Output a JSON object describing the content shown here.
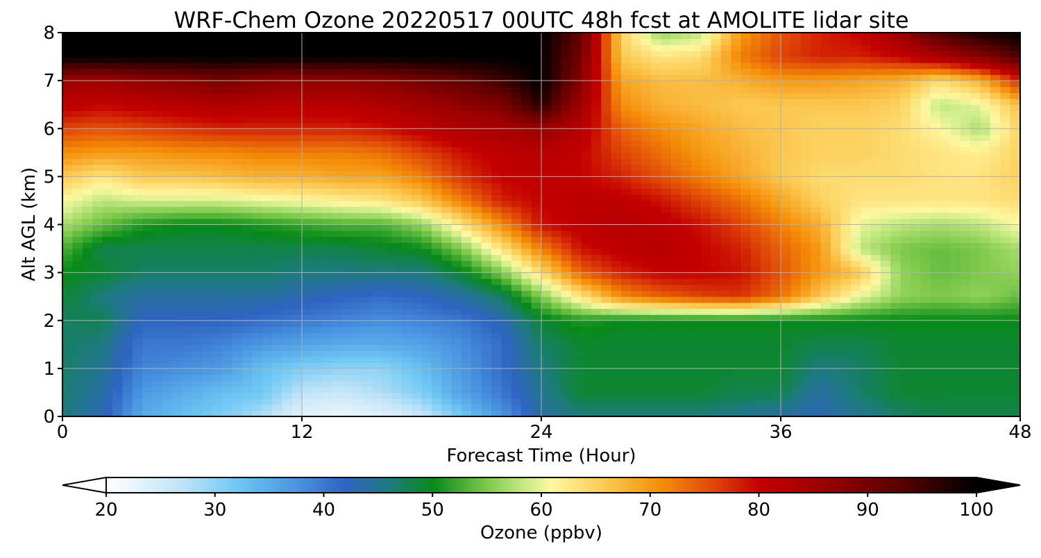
{
  "chart_data": {
    "type": "heatmap",
    "title": "WRF-Chem Ozone  20220517 00UTC 48h fcst at AMOLITE lidar site",
    "xlabel": "Forecast Time (Hour)",
    "ylabel": "Alt AGL (km)",
    "x_ticks": [
      0,
      12,
      24,
      36,
      48
    ],
    "y_ticks": [
      0,
      1,
      2,
      3,
      4,
      5,
      6,
      7,
      8
    ],
    "xlim": [
      0,
      48
    ],
    "ylim": [
      0,
      8
    ],
    "grid": true,
    "x": [
      0,
      2,
      4,
      6,
      8,
      10,
      12,
      14,
      16,
      18,
      20,
      22,
      24,
      26,
      28,
      30,
      32,
      34,
      36,
      38,
      40,
      42,
      44,
      46,
      48
    ],
    "y": [
      0,
      0.5,
      1,
      1.5,
      2,
      2.5,
      3,
      3.5,
      4,
      4.5,
      5,
      5.5,
      6,
      6.5,
      7,
      7.5,
      8
    ],
    "z": [
      [
        46,
        43,
        35,
        33,
        31,
        28,
        23,
        22,
        23,
        26,
        32,
        37,
        44,
        46,
        46,
        46,
        46,
        45,
        44,
        43,
        45,
        47,
        48,
        48,
        48
      ],
      [
        47,
        44,
        37,
        35,
        33,
        32,
        27,
        26,
        28,
        31,
        36,
        40,
        45,
        49,
        49,
        49,
        49,
        48,
        48,
        44,
        47,
        49,
        49,
        49,
        49
      ],
      [
        47,
        45,
        39,
        38,
        37,
        33,
        31,
        30,
        30,
        33,
        37,
        41,
        46,
        49,
        49,
        49,
        49,
        49,
        49,
        46,
        47,
        49,
        49,
        49,
        49
      ],
      [
        47,
        46,
        40,
        40,
        39,
        37,
        36,
        35,
        35,
        36,
        38,
        41,
        47,
        49,
        49,
        49,
        49,
        49,
        49,
        48,
        48,
        49,
        49,
        49,
        49
      ],
      [
        47,
        48,
        42,
        42,
        42,
        41,
        40,
        39,
        38,
        39,
        40,
        43,
        49,
        51,
        50,
        50,
        50,
        50,
        50,
        50,
        50,
        50,
        50,
        50,
        50
      ],
      [
        49,
        46,
        44,
        44,
        44,
        44,
        43,
        42,
        41,
        42,
        44,
        47,
        55,
        63,
        71,
        74,
        76,
        77,
        73,
        66,
        60,
        56,
        55,
        56,
        54
      ],
      [
        50,
        49,
        47,
        47,
        47,
        47,
        46,
        46,
        46,
        46,
        49,
        55,
        64,
        74,
        78,
        80,
        80,
        79,
        75,
        70,
        66,
        56,
        54,
        55,
        56
      ],
      [
        53,
        48,
        48,
        48,
        48,
        48,
        48,
        48,
        49,
        50,
        55,
        63,
        72,
        79,
        81,
        82,
        80,
        78,
        74,
        70,
        58,
        55,
        54,
        55,
        57
      ],
      [
        57,
        54,
        51,
        50,
        50,
        51,
        52,
        53,
        53,
        56,
        63,
        71,
        79,
        81,
        82,
        81,
        79,
        76,
        72,
        68,
        60,
        58,
        57,
        58,
        61
      ],
      [
        61,
        58,
        59,
        59,
        59,
        60,
        61,
        62,
        63,
        66,
        72,
        78,
        80,
        81,
        81,
        79,
        76,
        73,
        69,
        65,
        63,
        63,
        63,
        63,
        64
      ],
      [
        66,
        63,
        66,
        66,
        67,
        68,
        68,
        69,
        69,
        72,
        77,
        80,
        81,
        80,
        78,
        75,
        72,
        69,
        66,
        64,
        64,
        64,
        63,
        63,
        65
      ],
      [
        71,
        70,
        70,
        71,
        71,
        72,
        72,
        72,
        73,
        76,
        79,
        81,
        82,
        80,
        76,
        73,
        70,
        68,
        66,
        65,
        65,
        64,
        63,
        62,
        65
      ],
      [
        76,
        75,
        76,
        77,
        78,
        78,
        78,
        78,
        79,
        81,
        83,
        84,
        86,
        82,
        74,
        71,
        69,
        67,
        66,
        65,
        65,
        64,
        61,
        57,
        65
      ],
      [
        81,
        80,
        81,
        82,
        83,
        82,
        82,
        82,
        83,
        85,
        87,
        89,
        97,
        85,
        71,
        68,
        67,
        66,
        66,
        66,
        66,
        65,
        58,
        60,
        67
      ],
      [
        86,
        85,
        87,
        88,
        90,
        88,
        87,
        87,
        88,
        90,
        92,
        95,
        100,
        88,
        69,
        67,
        67,
        68,
        70,
        70,
        69,
        68,
        64,
        68,
        78
      ],
      [
        100,
        100,
        100,
        100,
        100,
        100,
        100,
        100,
        100,
        100,
        100,
        100,
        100,
        90,
        66,
        63,
        64,
        72,
        76,
        78,
        78,
        80,
        84,
        88,
        94
      ],
      [
        100,
        100,
        100,
        100,
        100,
        100,
        100,
        100,
        100,
        100,
        100,
        100,
        100,
        92,
        65,
        56,
        58,
        70,
        75,
        78,
        80,
        86,
        94,
        98,
        100
      ]
    ],
    "colorbar": {
      "label": "Ozone  (ppbv)",
      "ticks": [
        20,
        30,
        40,
        50,
        60,
        70,
        80,
        90,
        100
      ],
      "range": [
        20,
        100
      ],
      "extend": "both",
      "stops": [
        {
          "v": 20,
          "c": "#ffffff"
        },
        {
          "v": 27,
          "c": "#bfe3f7"
        },
        {
          "v": 32,
          "c": "#6fc8f5"
        },
        {
          "v": 38,
          "c": "#4690de"
        },
        {
          "v": 42,
          "c": "#2f63c2"
        },
        {
          "v": 46,
          "c": "#1e7a80"
        },
        {
          "v": 50,
          "c": "#078a18"
        },
        {
          "v": 55,
          "c": "#7ec94c"
        },
        {
          "v": 59,
          "c": "#d2ee8c"
        },
        {
          "v": 61,
          "c": "#fff7a0"
        },
        {
          "v": 66,
          "c": "#fbc850"
        },
        {
          "v": 71,
          "c": "#f58e08"
        },
        {
          "v": 76,
          "c": "#df4408"
        },
        {
          "v": 80,
          "c": "#c40000"
        },
        {
          "v": 86,
          "c": "#9a0000"
        },
        {
          "v": 93,
          "c": "#5a0000"
        },
        {
          "v": 100,
          "c": "#000000"
        }
      ]
    }
  }
}
